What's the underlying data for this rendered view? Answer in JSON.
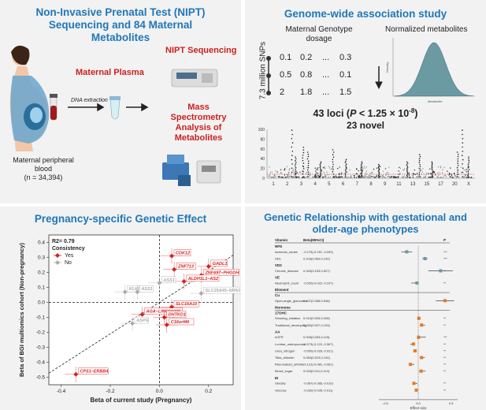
{
  "panelA": {
    "title": "Non-Invasive Prenatal Test (NIPT) Sequencing and 84 Maternal Metabolites",
    "plasma": "Maternal Plasma",
    "nipt": "NIPT Sequencing",
    "dna": "DNA extraction",
    "mass": "Mass Spectrometry Analysis of Metabolites",
    "blood": "Maternal peripheral blood",
    "n": "(n = 34,394)"
  },
  "panelB": {
    "title": "Genome-wide association study",
    "geno_header": "Maternal Genotype dosage",
    "norm_header": "Normalized metabolites",
    "snps": "7.3 million SNPs",
    "rows": [
      [
        "0.1",
        "0.2",
        "...",
        "0.3"
      ],
      [
        "0.5",
        "0.8",
        "...",
        "0.1"
      ],
      [
        "2",
        "1.8",
        "...",
        "1.5"
      ]
    ],
    "loci_a": "43 loci (",
    "loci_p": "P",
    "loci_b": " < 1.25 × 10",
    "loci_exp": "-8",
    "loci_c": ")",
    "novel": "23 novel",
    "density_ylabel": "Density",
    "density_xlabel": "Metabolite",
    "manhattan_y_ticks": [
      "0",
      "20",
      "40",
      "60",
      "80",
      "100"
    ],
    "manhattan_x_ticks": [
      "1",
      "2",
      "3",
      "4",
      "5",
      "6",
      "7",
      "8",
      "9",
      "11",
      "13",
      "15",
      "17",
      "20",
      "X"
    ]
  },
  "panelC": {
    "title": "Pregnancy-specific Genetic Effect",
    "r2": "R2= 0.79",
    "consistency": "Consistency",
    "yes": "Yes",
    "no": "No",
    "xlabel": "Beta of current study (Pregnancy)",
    "ylabel": "Beta of BGI multiomics cohort (Non-pregnancy)",
    "x_ticks": [
      "-0.4",
      "-0.2",
      "0.0",
      "0.2"
    ],
    "y_ticks": [
      "-0.5",
      "-0.4",
      "-0.3",
      "-0.2",
      "-0.1",
      "0.0",
      "0.1",
      "0.2",
      "0.3",
      "0.4"
    ],
    "genes": [
      {
        "name": "CDK12",
        "x": 0.05,
        "y": 0.31,
        "yes": true
      },
      {
        "name": "GADL1",
        "x": 0.2,
        "y": 0.24,
        "yes": true
      },
      {
        "name": "ZNF713",
        "x": 0.06,
        "y": 0.22,
        "yes": true
      },
      {
        "name": "ZNF697–PHGDH",
        "x": 0.17,
        "y": 0.18,
        "yes": true
      },
      {
        "name": "ALDH1L1–AS2",
        "x": 0.1,
        "y": 0.14,
        "yes": true
      },
      {
        "name": "ASS1",
        "x": 0.0,
        "y": 0.13,
        "yes": false
      },
      {
        "name": "KLKB1",
        "x": -0.14,
        "y": 0.07,
        "yes": false
      },
      {
        "name": "ASS1",
        "x": -0.09,
        "y": 0.07,
        "yes": false
      },
      {
        "name": "SLC25A45–NRN1",
        "x": 0.17,
        "y": 0.06,
        "yes": false
      },
      {
        "name": "SLC16A10",
        "x": 0.05,
        "y": -0.03,
        "yes": true
      },
      {
        "name": "AGA–LINC01098",
        "x": -0.07,
        "y": -0.08,
        "yes": true
      },
      {
        "name": "DHTKD1",
        "x": 0.02,
        "y": -0.1,
        "yes": true
      },
      {
        "name": "ASPG",
        "x": -0.11,
        "y": -0.14,
        "yes": false
      },
      {
        "name": "C16orf46",
        "x": 0.03,
        "y": -0.15,
        "yes": true
      },
      {
        "name": "CPS1–ERBB4",
        "x": -0.34,
        "y": -0.48,
        "yes": true
      }
    ]
  },
  "panelD": {
    "title": "Genetic Relationship with gestational and older-age phenotypes",
    "col_beta": "Beta(95%CI)",
    "col_p": "P",
    "xlabel": "Effect size",
    "groups": [
      {
        "name": "Vitamin",
        "rows": []
      },
      {
        "name": "NFD",
        "rows": [
          {
            "label": "Ischemic_stroke",
            "beta": "-0.175(-0.257,-0.093)",
            "p": "***"
          },
          {
            "label": "HDL",
            "beta": "0.103(0.063,0.142)",
            "p": "***"
          }
        ]
      },
      {
        "name": "VD2",
        "rows": [
          {
            "label": "Chronic_disease",
            "beta": "0.340(0.153,0.527)",
            "p": "**"
          }
        ]
      },
      {
        "name": "VE",
        "rows": [
          {
            "label": "Neutrophil_count",
            "beta": "-0.020(-0.022,-0.107)",
            "p": "**"
          }
        ]
      },
      {
        "name": "Element",
        "rows": []
      },
      {
        "name": "Cu",
        "rows": [
          {
            "label": "Open-angle_glaucoma",
            "beta": "0.407(0.268,0.548)",
            "p": "***"
          }
        ]
      },
      {
        "name": "Hormone",
        "rows": []
      },
      {
        "name": "17OHC",
        "rows": [
          {
            "label": "Smoking_initiation",
            "beta": "0.010(0.005,0.028)",
            "p": "**"
          },
          {
            "label": "Traditional_developing",
            "beta": "0.050(0.027,0.103)",
            "p": "**"
          }
        ]
      },
      {
        "name": "AA",
        "rows": [
          {
            "label": "eGFR",
            "beta": "0.005(0.003,0.115)",
            "p": "***"
          },
          {
            "label": "Lumbar_osteoporosis",
            "beta": "-0.073(-0.122,-0.067)",
            "p": "**"
          },
          {
            "label": "Urea_nitrogen",
            "beta": "-0.050(-0.028,-0.021)",
            "p": "**"
          },
          {
            "label": "Tibia_bilirubin",
            "beta": "0.050(0.023,0.100)",
            "p": "**"
          },
          {
            "label": "Rheumatoid_arthritis",
            "beta": "-0.121(-0.081,-0.061)",
            "p": "**"
          },
          {
            "label": "Blood_sugar",
            "beta": "0.043(0.011,0.110)",
            "p": "**"
          }
        ]
      },
      {
        "name": "EI",
        "rows": [
          {
            "label": "Obesity",
            "beta": "-0.067(-0.085,-0.010)",
            "p": "**"
          },
          {
            "label": "Glucose",
            "beta": "-0.030(-0.035,-0.011)",
            "p": "**"
          }
        ]
      }
    ],
    "x_ticks": [
      "-0.5",
      "0.0",
      "0.5"
    ]
  },
  "chart_data": {
    "type": "scatter",
    "title": "Pregnancy-specific Genetic Effect",
    "xlabel": "Beta of current study (Pregnancy)",
    "ylabel": "Beta of BGI multiomics cohort (Non-pregnancy)",
    "xlim": [
      -0.45,
      0.3
    ],
    "ylim": [
      -0.55,
      0.45
    ],
    "series": [
      {
        "name": "Yes",
        "x": [
          0.05,
          0.2,
          0.06,
          0.17,
          0.1,
          0.05,
          -0.07,
          0.02,
          0.03,
          -0.34
        ],
        "y": [
          0.31,
          0.24,
          0.22,
          0.18,
          0.14,
          -0.03,
          -0.08,
          -0.1,
          -0.15,
          -0.48
        ]
      },
      {
        "name": "No",
        "x": [
          0.0,
          -0.14,
          -0.09,
          0.17,
          -0.11
        ],
        "y": [
          0.13,
          0.07,
          0.07,
          0.06,
          -0.14
        ]
      }
    ]
  },
  "colors": {
    "title": "#1f77b9",
    "yes": "#d62020",
    "no": "#aaaaaa",
    "panel": "#f2f2f2"
  }
}
